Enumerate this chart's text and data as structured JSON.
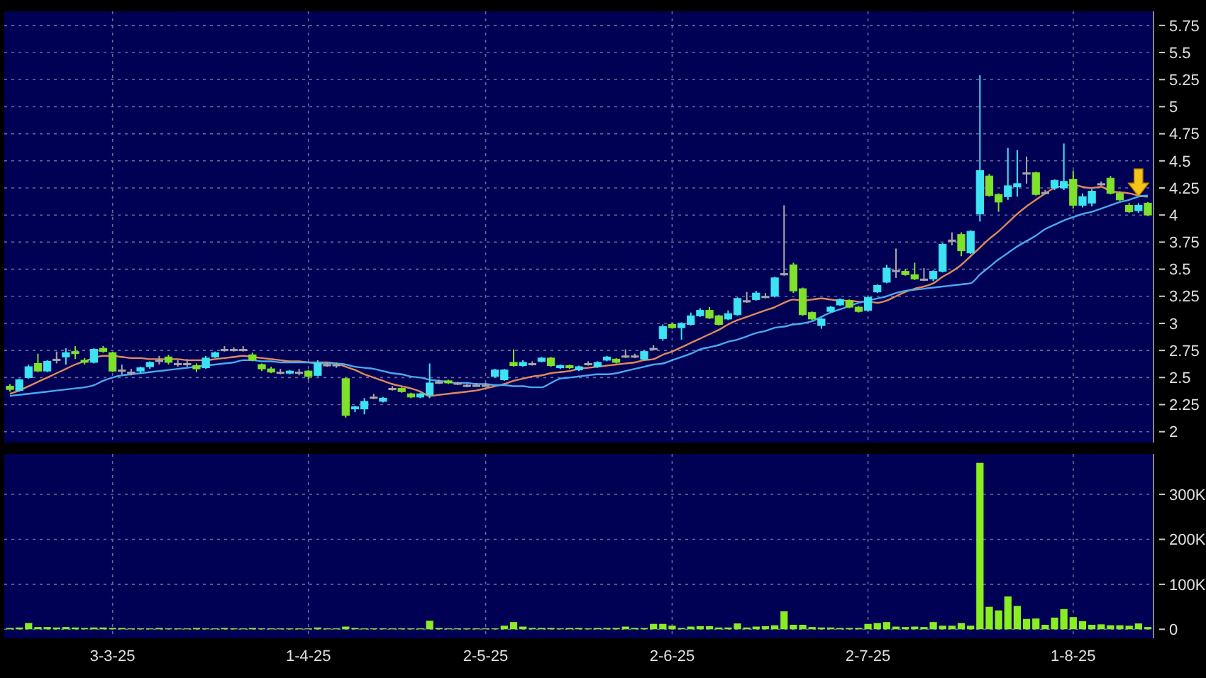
{
  "chart_data": [
    {
      "type": "candlestick",
      "tick_labels": "y",
      "grid": true,
      "categories": [
        null,
        null,
        null,
        null,
        null,
        null,
        null,
        null,
        null,
        null,
        null,
        null,
        null,
        null,
        null,
        null,
        null,
        null,
        null,
        null,
        null,
        null,
        null,
        null,
        null,
        null,
        null,
        null,
        null,
        null,
        null,
        null,
        null,
        null,
        null,
        null,
        null,
        null,
        null,
        null,
        null,
        null,
        null,
        null,
        null,
        null,
        null,
        null,
        null,
        null,
        null,
        null,
        null,
        null,
        null,
        null,
        null,
        null,
        null,
        null,
        null,
        null,
        null,
        null,
        null,
        null,
        null,
        null,
        null,
        null,
        null,
        null,
        null,
        null,
        null,
        null,
        null,
        null,
        null,
        null,
        null,
        null,
        null,
        null,
        null,
        null,
        null,
        null,
        null,
        null,
        null,
        null,
        null,
        null,
        null,
        null,
        null,
        null,
        null,
        null,
        null,
        null,
        null,
        null,
        null,
        null,
        null,
        null,
        null,
        null,
        null,
        null,
        null,
        null,
        null,
        null,
        null,
        null,
        null,
        null,
        null,
        null,
        null
      ],
      "ohlc": [
        [
          2.42,
          2.44,
          2.37,
          2.39
        ],
        [
          2.38,
          2.49,
          2.37,
          2.48
        ],
        [
          2.5,
          2.62,
          2.49,
          2.6
        ],
        [
          2.63,
          2.72,
          2.55,
          2.56
        ],
        [
          2.56,
          2.66,
          2.55,
          2.65
        ],
        [
          2.67,
          2.74,
          2.63,
          2.67
        ],
        [
          2.69,
          2.77,
          2.62,
          2.73
        ],
        [
          2.74,
          2.79,
          2.67,
          2.72
        ],
        [
          2.66,
          2.68,
          2.62,
          2.64
        ],
        [
          2.64,
          2.77,
          2.63,
          2.76
        ],
        [
          2.77,
          2.79,
          2.73,
          2.74
        ],
        [
          2.73,
          2.74,
          2.55,
          2.56
        ],
        [
          2.57,
          2.62,
          2.53,
          2.57
        ],
        [
          2.55,
          2.58,
          2.52,
          2.55
        ],
        [
          2.56,
          2.6,
          2.54,
          2.59
        ],
        [
          2.6,
          2.65,
          2.58,
          2.64
        ],
        [
          2.66,
          2.7,
          2.62,
          2.66
        ],
        [
          2.69,
          2.71,
          2.62,
          2.64
        ],
        [
          2.63,
          2.66,
          2.6,
          2.63
        ],
        [
          2.63,
          2.67,
          2.6,
          2.63
        ],
        [
          2.61,
          2.63,
          2.55,
          2.58
        ],
        [
          2.59,
          2.7,
          2.58,
          2.68
        ],
        [
          2.69,
          2.74,
          2.68,
          2.73
        ],
        [
          2.76,
          2.79,
          2.74,
          2.76
        ],
        [
          2.76,
          2.78,
          2.74,
          2.76
        ],
        [
          2.76,
          2.79,
          2.74,
          2.76
        ],
        [
          2.71,
          2.73,
          2.65,
          2.66
        ],
        [
          2.62,
          2.63,
          2.56,
          2.58
        ],
        [
          2.58,
          2.6,
          2.54,
          2.55
        ],
        [
          2.55,
          2.58,
          2.53,
          2.55
        ],
        [
          2.54,
          2.57,
          2.53,
          2.56
        ],
        [
          2.55,
          2.58,
          2.52,
          2.55
        ],
        [
          2.56,
          2.57,
          2.48,
          2.51
        ],
        [
          2.52,
          2.66,
          2.51,
          2.63
        ],
        [
          2.62,
          2.64,
          2.6,
          2.62
        ],
        [
          2.62,
          2.64,
          2.59,
          2.62
        ],
        [
          2.49,
          2.5,
          2.13,
          2.15
        ],
        [
          2.21,
          2.24,
          2.18,
          2.23
        ],
        [
          2.21,
          2.31,
          2.16,
          2.28
        ],
        [
          2.32,
          2.35,
          2.3,
          2.32
        ],
        [
          2.28,
          2.32,
          2.27,
          2.31
        ],
        [
          2.4,
          2.42,
          2.38,
          2.4
        ],
        [
          2.4,
          2.41,
          2.36,
          2.37
        ],
        [
          2.35,
          2.36,
          2.31,
          2.32
        ],
        [
          2.32,
          2.36,
          2.31,
          2.35
        ],
        [
          2.34,
          2.63,
          2.31,
          2.45
        ],
        [
          2.46,
          2.48,
          2.44,
          2.46
        ],
        [
          2.47,
          2.48,
          2.44,
          2.45
        ],
        [
          2.45,
          2.46,
          2.43,
          2.45
        ],
        [
          2.43,
          2.44,
          2.41,
          2.43
        ],
        [
          2.43,
          2.45,
          2.42,
          2.43
        ],
        [
          2.43,
          2.45,
          2.42,
          2.43
        ],
        [
          2.51,
          2.58,
          2.5,
          2.57
        ],
        [
          2.48,
          2.58,
          2.47,
          2.57
        ],
        [
          2.64,
          2.76,
          2.6,
          2.61
        ],
        [
          2.61,
          2.66,
          2.6,
          2.64
        ],
        [
          2.63,
          2.65,
          2.61,
          2.63
        ],
        [
          2.65,
          2.69,
          2.64,
          2.68
        ],
        [
          2.68,
          2.69,
          2.6,
          2.61
        ],
        [
          2.59,
          2.62,
          2.58,
          2.61
        ],
        [
          2.61,
          2.62,
          2.58,
          2.59
        ],
        [
          2.57,
          2.61,
          2.56,
          2.6
        ],
        [
          2.63,
          2.65,
          2.61,
          2.63
        ],
        [
          2.6,
          2.65,
          2.59,
          2.64
        ],
        [
          2.66,
          2.7,
          2.65,
          2.69
        ],
        [
          2.67,
          2.68,
          2.63,
          2.64
        ],
        [
          2.7,
          2.76,
          2.68,
          2.7
        ],
        [
          2.7,
          2.72,
          2.68,
          2.7
        ],
        [
          2.67,
          2.75,
          2.66,
          2.74
        ],
        [
          2.77,
          2.8,
          2.75,
          2.77
        ],
        [
          2.86,
          2.99,
          2.84,
          2.97
        ],
        [
          2.99,
          3.01,
          2.95,
          2.96
        ],
        [
          2.96,
          3.01,
          2.85,
          3.0
        ],
        [
          2.99,
          3.1,
          2.98,
          3.07
        ],
        [
          3.07,
          3.14,
          3.06,
          3.12
        ],
        [
          3.12,
          3.15,
          3.04,
          3.05
        ],
        [
          3.07,
          3.08,
          2.98,
          2.99
        ],
        [
          3.04,
          3.12,
          3.03,
          3.09
        ],
        [
          3.08,
          3.24,
          3.07,
          3.23
        ],
        [
          3.21,
          3.29,
          3.19,
          3.21
        ],
        [
          3.22,
          3.3,
          3.21,
          3.28
        ],
        [
          3.25,
          3.28,
          3.23,
          3.25
        ],
        [
          3.25,
          3.43,
          3.24,
          3.42
        ],
        [
          3.46,
          4.09,
          3.44,
          3.46
        ],
        [
          3.54,
          3.56,
          3.28,
          3.3
        ],
        [
          3.32,
          3.33,
          3.07,
          3.08
        ],
        [
          3.1,
          3.11,
          3.03,
          3.04
        ],
        [
          2.98,
          3.05,
          2.95,
          3.04
        ],
        [
          3.11,
          3.16,
          3.1,
          3.15
        ],
        [
          3.17,
          3.23,
          3.16,
          3.22
        ],
        [
          3.21,
          3.22,
          3.14,
          3.15
        ],
        [
          3.15,
          3.16,
          3.1,
          3.11
        ],
        [
          3.12,
          3.25,
          3.11,
          3.24
        ],
        [
          3.29,
          3.36,
          3.28,
          3.35
        ],
        [
          3.38,
          3.54,
          3.37,
          3.51
        ],
        [
          3.49,
          3.69,
          3.42,
          3.49
        ],
        [
          3.48,
          3.5,
          3.44,
          3.45
        ],
        [
          3.45,
          3.56,
          3.4,
          3.41
        ],
        [
          3.41,
          3.51,
          3.39,
          3.41
        ],
        [
          3.41,
          3.49,
          3.39,
          3.48
        ],
        [
          3.48,
          3.74,
          3.47,
          3.73
        ],
        [
          3.77,
          3.84,
          3.72,
          3.77
        ],
        [
          3.82,
          3.84,
          3.62,
          3.67
        ],
        [
          3.65,
          3.86,
          3.64,
          3.85
        ],
        [
          4.01,
          5.29,
          3.94,
          4.41
        ],
        [
          4.36,
          4.38,
          4.17,
          4.18
        ],
        [
          4.19,
          4.2,
          4.03,
          4.12
        ],
        [
          4.17,
          4.62,
          4.14,
          4.27
        ],
        [
          4.26,
          4.6,
          4.17,
          4.29
        ],
        [
          4.39,
          4.54,
          4.29,
          4.39
        ],
        [
          4.39,
          4.4,
          4.18,
          4.19
        ],
        [
          4.21,
          4.23,
          4.19,
          4.21
        ],
        [
          4.25,
          4.33,
          4.23,
          4.32
        ],
        [
          4.25,
          4.66,
          4.23,
          4.31
        ],
        [
          4.33,
          4.41,
          4.06,
          4.09
        ],
        [
          4.09,
          4.2,
          4.07,
          4.17
        ],
        [
          4.11,
          4.24,
          4.08,
          4.22
        ],
        [
          4.29,
          4.31,
          4.27,
          4.29
        ],
        [
          4.34,
          4.36,
          4.19,
          4.2
        ],
        [
          4.2,
          4.22,
          4.13,
          4.14
        ],
        [
          4.09,
          4.11,
          4.02,
          4.03
        ],
        [
          4.04,
          4.11,
          4.02,
          4.09
        ],
        [
          4.11,
          4.12,
          3.99,
          4.0
        ]
      ],
      "colors": [
        "#7fe12b",
        "#3de3f2",
        "#3de3f2",
        "#7fe12b",
        "#3de3f2",
        "#a8a8a8",
        "#3de3f2",
        "#7fe12b",
        "#7fe12b",
        "#3de3f2",
        "#7fe12b",
        "#7fe12b",
        "#a8a8a8",
        "#a8a8a8",
        "#3de3f2",
        "#3de3f2",
        "#a8a8a8",
        "#7fe12b",
        "#a8a8a8",
        "#a8a8a8",
        "#7fe12b",
        "#3de3f2",
        "#3de3f2",
        "#a8a8a8",
        "#a8a8a8",
        "#a8a8a8",
        "#7fe12b",
        "#7fe12b",
        "#7fe12b",
        "#a8a8a8",
        "#3de3f2",
        "#a8a8a8",
        "#7fe12b",
        "#3de3f2",
        "#a8a8a8",
        "#a8a8a8",
        "#7fe12b",
        "#3de3f2",
        "#3de3f2",
        "#a8a8a8",
        "#3de3f2",
        "#a8a8a8",
        "#7fe12b",
        "#7fe12b",
        "#3de3f2",
        "#3de3f2",
        "#a8a8a8",
        "#7fe12b",
        "#a8a8a8",
        "#a8a8a8",
        "#a8a8a8",
        "#a8a8a8",
        "#3de3f2",
        "#3de3f2",
        "#7fe12b",
        "#3de3f2",
        "#a8a8a8",
        "#3de3f2",
        "#7fe12b",
        "#3de3f2",
        "#7fe12b",
        "#3de3f2",
        "#a8a8a8",
        "#3de3f2",
        "#3de3f2",
        "#7fe12b",
        "#a8a8a8",
        "#a8a8a8",
        "#3de3f2",
        "#a8a8a8",
        "#3de3f2",
        "#7fe12b",
        "#3de3f2",
        "#3de3f2",
        "#3de3f2",
        "#7fe12b",
        "#7fe12b",
        "#3de3f2",
        "#3de3f2",
        "#a8a8a8",
        "#3de3f2",
        "#a8a8a8",
        "#3de3f2",
        "#a8a8a8",
        "#7fe12b",
        "#7fe12b",
        "#7fe12b",
        "#3de3f2",
        "#3de3f2",
        "#3de3f2",
        "#7fe12b",
        "#7fe12b",
        "#3de3f2",
        "#3de3f2",
        "#3de3f2",
        "#a8a8a8",
        "#7fe12b",
        "#7fe12b",
        "#a8a8a8",
        "#3de3f2",
        "#3de3f2",
        "#a8a8a8",
        "#7fe12b",
        "#3de3f2",
        "#3de3f2",
        "#7fe12b",
        "#7fe12b",
        "#3de3f2",
        "#3de3f2",
        "#a8a8a8",
        "#7fe12b",
        "#a8a8a8",
        "#3de3f2",
        "#3de3f2",
        "#7fe12b",
        "#3de3f2",
        "#3de3f2",
        "#a8a8a8",
        "#7fe12b",
        "#7fe12b",
        "#7fe12b",
        "#3de3f2",
        "#7fe12b"
      ],
      "series": [
        {
          "type": "line",
          "color": "#e08a5a",
          "values": [
            2.35,
            2.38,
            2.42,
            2.46,
            2.5,
            2.54,
            2.58,
            2.62,
            2.65,
            2.68,
            2.7,
            2.7,
            2.69,
            2.68,
            2.68,
            2.67,
            2.67,
            2.67,
            2.67,
            2.66,
            2.66,
            2.66,
            2.67,
            2.68,
            2.69,
            2.7,
            2.69,
            2.68,
            2.67,
            2.66,
            2.65,
            2.65,
            2.64,
            2.64,
            2.64,
            2.63,
            2.6,
            2.57,
            2.53,
            2.5,
            2.47,
            2.44,
            2.42,
            2.4,
            2.37,
            2.33,
            2.34,
            2.35,
            2.36,
            2.37,
            2.38,
            2.4,
            2.42,
            2.44,
            2.47,
            2.49,
            2.51,
            2.52,
            2.54,
            2.55,
            2.56,
            2.58,
            2.59,
            2.6,
            2.61,
            2.62,
            2.63,
            2.64,
            2.66,
            2.67,
            2.71,
            2.74,
            2.78,
            2.82,
            2.86,
            2.9,
            2.94,
            2.99,
            3.03,
            3.06,
            3.09,
            3.12,
            3.15,
            3.19,
            3.22,
            3.21,
            3.22,
            3.23,
            3.22,
            3.21,
            3.21,
            3.2,
            3.2,
            3.19,
            3.21,
            3.25,
            3.29,
            3.32,
            3.34,
            3.37,
            3.43,
            3.48,
            3.54,
            3.62,
            3.7,
            3.78,
            3.85,
            3.93,
            4.01,
            4.08,
            4.14,
            4.2,
            4.25,
            4.27,
            4.28,
            4.26,
            4.25,
            4.26,
            4.22,
            4.21,
            4.2,
            4.18,
            4.17
          ]
        },
        {
          "type": "line",
          "color": "#4aa8ee",
          "values": [
            2.33,
            2.34,
            2.35,
            2.36,
            2.37,
            2.38,
            2.39,
            2.4,
            2.41,
            2.43,
            2.47,
            2.5,
            2.52,
            2.53,
            2.54,
            2.55,
            2.56,
            2.57,
            2.58,
            2.59,
            2.6,
            2.61,
            2.62,
            2.63,
            2.64,
            2.66,
            2.66,
            2.65,
            2.65,
            2.64,
            2.64,
            2.64,
            2.64,
            2.63,
            2.63,
            2.63,
            2.62,
            2.6,
            2.59,
            2.58,
            2.56,
            2.54,
            2.53,
            2.51,
            2.5,
            2.48,
            2.47,
            2.46,
            2.45,
            2.45,
            2.44,
            2.44,
            2.43,
            2.43,
            2.42,
            2.42,
            2.41,
            2.41,
            2.45,
            2.49,
            2.5,
            2.51,
            2.52,
            2.53,
            2.53,
            2.54,
            2.56,
            2.58,
            2.6,
            2.62,
            2.63,
            2.66,
            2.69,
            2.72,
            2.76,
            2.78,
            2.8,
            2.83,
            2.85,
            2.88,
            2.91,
            2.93,
            2.96,
            2.97,
            2.99,
            3.0,
            3.02,
            3.06,
            3.1,
            3.13,
            3.16,
            3.19,
            3.21,
            3.23,
            3.25,
            3.28,
            3.3,
            3.31,
            3.32,
            3.33,
            3.34,
            3.35,
            3.36,
            3.37,
            3.45,
            3.52,
            3.59,
            3.65,
            3.71,
            3.76,
            3.81,
            3.87,
            3.91,
            3.95,
            3.98,
            4.01,
            4.03,
            4.06,
            4.09,
            4.12,
            4.14,
            4.17,
            4.18
          ]
        }
      ],
      "ylim": [
        1.9,
        5.88
      ],
      "yticks": [
        2,
        2.25,
        2.5,
        2.75,
        3,
        3.25,
        3.5,
        3.75,
        4,
        4.25,
        4.5,
        4.75,
        5,
        5.25,
        5.5,
        5.75
      ]
    },
    {
      "type": "bar",
      "grid": true,
      "color": "#88ee22",
      "categories": [
        null,
        null,
        null,
        null,
        null,
        null,
        null,
        null,
        null,
        null,
        null,
        "3-3-25",
        null,
        null,
        null,
        null,
        null,
        null,
        null,
        null,
        null,
        null,
        null,
        null,
        null,
        null,
        null,
        null,
        null,
        null,
        null,
        null,
        "1-4-25",
        null,
        null,
        null,
        null,
        null,
        null,
        null,
        null,
        null,
        null,
        null,
        null,
        null,
        null,
        null,
        null,
        null,
        null,
        "2-5-25",
        null,
        null,
        null,
        null,
        null,
        null,
        null,
        null,
        null,
        null,
        null,
        null,
        null,
        null,
        null,
        null,
        null,
        null,
        null,
        "2-6-25",
        null,
        null,
        null,
        null,
        null,
        null,
        null,
        null,
        null,
        null,
        null,
        null,
        null,
        null,
        null,
        null,
        null,
        null,
        null,
        null,
        "2-7-25",
        null,
        null,
        null,
        null,
        null,
        null,
        null,
        null,
        null,
        null,
        null,
        null,
        null,
        null,
        null,
        null,
        null,
        null,
        null,
        null,
        null,
        "1-8-25",
        null,
        null,
        null,
        null,
        null,
        null,
        null,
        null
      ],
      "values": [
        3000,
        4000,
        14000,
        5000,
        5000,
        4000,
        5000,
        4000,
        3000,
        4000,
        4000,
        3000,
        3000,
        2000,
        2000,
        2000,
        3000,
        2000,
        2000,
        2000,
        3000,
        2000,
        2000,
        3000,
        2000,
        2000,
        3000,
        2000,
        2000,
        2000,
        2000,
        2000,
        2000,
        4000,
        2000,
        2000,
        6000,
        3000,
        2000,
        2000,
        2000,
        2000,
        2000,
        2000,
        2000,
        19000,
        3000,
        2000,
        2000,
        2000,
        2000,
        2000,
        2000,
        8000,
        16000,
        6000,
        3000,
        3000,
        3000,
        2000,
        3000,
        3000,
        2000,
        3000,
        3000,
        3000,
        6000,
        3000,
        3000,
        12000,
        12000,
        8000,
        3000,
        6000,
        7000,
        7000,
        4000,
        4000,
        13000,
        4000,
        6000,
        7000,
        9000,
        40000,
        10000,
        10000,
        5000,
        4000,
        4000,
        3000,
        3000,
        3000,
        12000,
        14000,
        16000,
        6000,
        5000,
        6000,
        5000,
        16000,
        8000,
        8000,
        14000,
        8000,
        370000,
        50000,
        42000,
        73000,
        52000,
        23000,
        24000,
        10000,
        26000,
        45000,
        27000,
        18000,
        10000,
        11000,
        9000,
        9000,
        8000,
        13000,
        5000
      ],
      "ylim": [
        -20000,
        390000
      ],
      "yticks": [
        0,
        {
          "value": 100000,
          "label": "100K"
        },
        {
          "value": 200000,
          "label": "200K"
        },
        {
          "value": 300000,
          "label": "300K"
        }
      ]
    }
  ]
}
